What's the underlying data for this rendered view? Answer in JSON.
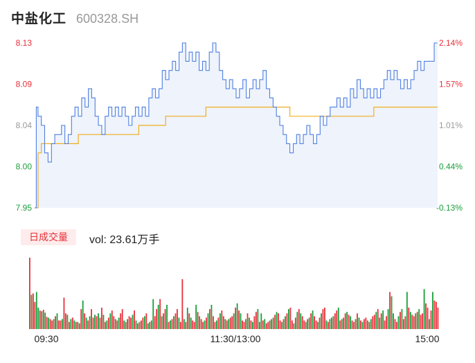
{
  "header": {
    "name": "中盐化工",
    "code": "600328.SH"
  },
  "colors": {
    "up": "#e8303a",
    "down": "#1a9e3a",
    "neutral": "#999999",
    "price_line": "#4d7fe0",
    "avg_line": "#f0ad1c",
    "area_fill": "#eef3fc"
  },
  "volume": {
    "tag": "日成交量",
    "label": "vol: 23.61万手"
  },
  "chart_data": {
    "type": "line",
    "y_left_ticks": [
      "8.13",
      "8.09",
      "8.04",
      "8.00",
      "7.95"
    ],
    "y_right_ticks": [
      "2.14%",
      "1.57%",
      "1.01%",
      "0.44%",
      "-0.13%"
    ],
    "x_ticks": [
      "09:30",
      "11:30/13:00",
      "15:00"
    ],
    "ylim": [
      7.95,
      8.13
    ],
    "minutes": 240,
    "price": [
      [
        0,
        7.95
      ],
      [
        1,
        8.06
      ],
      [
        2,
        8.05
      ],
      [
        4,
        8.04
      ],
      [
        6,
        8.01
      ],
      [
        8,
        8.0
      ],
      [
        10,
        8.02
      ],
      [
        12,
        8.03
      ],
      [
        14,
        8.03
      ],
      [
        16,
        8.04
      ],
      [
        18,
        8.02
      ],
      [
        20,
        8.03
      ],
      [
        22,
        8.05
      ],
      [
        24,
        8.06
      ],
      [
        26,
        8.05
      ],
      [
        28,
        8.07
      ],
      [
        30,
        8.06
      ],
      [
        32,
        8.08
      ],
      [
        34,
        8.07
      ],
      [
        36,
        8.05
      ],
      [
        38,
        8.04
      ],
      [
        40,
        8.03
      ],
      [
        42,
        8.05
      ],
      [
        44,
        8.06
      ],
      [
        46,
        8.05
      ],
      [
        48,
        8.06
      ],
      [
        50,
        8.05
      ],
      [
        52,
        8.06
      ],
      [
        54,
        8.05
      ],
      [
        56,
        8.04
      ],
      [
        58,
        8.05
      ],
      [
        60,
        8.06
      ],
      [
        62,
        8.05
      ],
      [
        64,
        8.06
      ],
      [
        66,
        8.05
      ],
      [
        68,
        8.07
      ],
      [
        70,
        8.08
      ],
      [
        72,
        8.07
      ],
      [
        74,
        8.08
      ],
      [
        76,
        8.1
      ],
      [
        78,
        8.09
      ],
      [
        80,
        8.1
      ],
      [
        82,
        8.11
      ],
      [
        84,
        8.1
      ],
      [
        86,
        8.12
      ],
      [
        88,
        8.13
      ],
      [
        90,
        8.11
      ],
      [
        92,
        8.12
      ],
      [
        94,
        8.11
      ],
      [
        96,
        8.12
      ],
      [
        98,
        8.1
      ],
      [
        100,
        8.11
      ],
      [
        102,
        8.1
      ],
      [
        104,
        8.12
      ],
      [
        106,
        8.13
      ],
      [
        108,
        8.12
      ],
      [
        110,
        8.1
      ],
      [
        112,
        8.09
      ],
      [
        114,
        8.08
      ],
      [
        116,
        8.09
      ],
      [
        118,
        8.08
      ],
      [
        120,
        8.07
      ],
      [
        122,
        8.08
      ],
      [
        124,
        8.09
      ],
      [
        126,
        8.07
      ],
      [
        128,
        8.08
      ],
      [
        130,
        8.09
      ],
      [
        132,
        8.08
      ],
      [
        134,
        8.09
      ],
      [
        136,
        8.1
      ],
      [
        138,
        8.08
      ],
      [
        140,
        8.07
      ],
      [
        142,
        8.06
      ],
      [
        144,
        8.05
      ],
      [
        146,
        8.04
      ],
      [
        148,
        8.03
      ],
      [
        150,
        8.02
      ],
      [
        152,
        8.01
      ],
      [
        154,
        8.02
      ],
      [
        156,
        8.03
      ],
      [
        158,
        8.02
      ],
      [
        160,
        8.03
      ],
      [
        162,
        8.04
      ],
      [
        164,
        8.03
      ],
      [
        166,
        8.02
      ],
      [
        168,
        8.03
      ],
      [
        170,
        8.05
      ],
      [
        172,
        8.04
      ],
      [
        174,
        8.05
      ],
      [
        176,
        8.06
      ],
      [
        178,
        8.06
      ],
      [
        180,
        8.07
      ],
      [
        182,
        8.06
      ],
      [
        184,
        8.07
      ],
      [
        186,
        8.06
      ],
      [
        188,
        8.08
      ],
      [
        190,
        8.07
      ],
      [
        192,
        8.09
      ],
      [
        194,
        8.08
      ],
      [
        196,
        8.07
      ],
      [
        198,
        8.08
      ],
      [
        200,
        8.07
      ],
      [
        202,
        8.08
      ],
      [
        204,
        8.07
      ],
      [
        206,
        8.08
      ],
      [
        208,
        8.09
      ],
      [
        210,
        8.1
      ],
      [
        212,
        8.09
      ],
      [
        214,
        8.1
      ],
      [
        216,
        8.09
      ],
      [
        218,
        8.08
      ],
      [
        220,
        8.09
      ],
      [
        222,
        8.08
      ],
      [
        224,
        8.09
      ],
      [
        226,
        8.1
      ],
      [
        228,
        8.11
      ],
      [
        230,
        8.1
      ],
      [
        232,
        8.11
      ],
      [
        234,
        8.11
      ],
      [
        236,
        8.11
      ],
      [
        238,
        8.13
      ],
      [
        240,
        8.13
      ]
    ],
    "avg": [
      [
        0,
        7.95
      ],
      [
        2,
        8.01
      ],
      [
        4,
        8.02
      ],
      [
        10,
        8.02
      ],
      [
        20,
        8.02
      ],
      [
        26,
        8.03
      ],
      [
        60,
        8.03
      ],
      [
        62,
        8.04
      ],
      [
        76,
        8.04
      ],
      [
        78,
        8.05
      ],
      [
        100,
        8.05
      ],
      [
        102,
        8.06
      ],
      [
        150,
        8.06
      ],
      [
        152,
        8.05
      ],
      [
        200,
        8.05
      ],
      [
        202,
        8.06
      ],
      [
        240,
        8.06
      ]
    ],
    "volumes": [
      100,
      48,
      50,
      38,
      52,
      30,
      26,
      25,
      27,
      23,
      17,
      16,
      14,
      12,
      14,
      18,
      22,
      12,
      12,
      14,
      44,
      22,
      20,
      10,
      14,
      16,
      12,
      10,
      10,
      8,
      28,
      40,
      22,
      16,
      12,
      18,
      28,
      16,
      20,
      18,
      22,
      16,
      30,
      20,
      10,
      12,
      16,
      22,
      26,
      18,
      14,
      12,
      16,
      22,
      28,
      12,
      10,
      14,
      18,
      16,
      20,
      26,
      12,
      8,
      10,
      12,
      16,
      18,
      22,
      8,
      10,
      12,
      42,
      18,
      28,
      34,
      42,
      18,
      22,
      28,
      34,
      10,
      12,
      14,
      18,
      22,
      28,
      16,
      10,
      70,
      14,
      10,
      30,
      22,
      16,
      12,
      10,
      34,
      24,
      18,
      14,
      10,
      12,
      16,
      22,
      28,
      34,
      18,
      10,
      12,
      16,
      22,
      26,
      18,
      14,
      12,
      14,
      16,
      18,
      22,
      30,
      36,
      26,
      22,
      12,
      10,
      14,
      22,
      16,
      12,
      10,
      18,
      24,
      28,
      10,
      22,
      12,
      14,
      8,
      10,
      12,
      14,
      16,
      20,
      24,
      22,
      12,
      10,
      14,
      18,
      22,
      28,
      30,
      12,
      8,
      16,
      24,
      28,
      22,
      18,
      12,
      10,
      14,
      16,
      22,
      26,
      18,
      12,
      10,
      16,
      22,
      28,
      30,
      12,
      10,
      14,
      16,
      18,
      22,
      26,
      30,
      12,
      14,
      16,
      22,
      24,
      20,
      18,
      12,
      10,
      14,
      22,
      16,
      12,
      10,
      14,
      16,
      12,
      10,
      14,
      18,
      20,
      24,
      28,
      16,
      22,
      26,
      12,
      18,
      28,
      52,
      46,
      22,
      14,
      10,
      18,
      24,
      28,
      14,
      18,
      52,
      30,
      24,
      20,
      18,
      22,
      24,
      28,
      20,
      22,
      56,
      36,
      30,
      14,
      26,
      52,
      40,
      38,
      30
    ],
    "vol_up": [
      1,
      0,
      1,
      1,
      0,
      0,
      1,
      0,
      1,
      0,
      1,
      0,
      1,
      1,
      0,
      1,
      0,
      1,
      1,
      0,
      1,
      1,
      0,
      1,
      0,
      1,
      0,
      1,
      0,
      1,
      1,
      0,
      1,
      0,
      1,
      0,
      1,
      1,
      0,
      1,
      0,
      1,
      1,
      0,
      1,
      0,
      1,
      0,
      1,
      1,
      0,
      1,
      0,
      1,
      1,
      0,
      1,
      0,
      1,
      1,
      0,
      1,
      0,
      1,
      0,
      1,
      1,
      0,
      1,
      0,
      1,
      0,
      0,
      1,
      1,
      0,
      1,
      0,
      1,
      1,
      0,
      1,
      0,
      1,
      0,
      1,
      1,
      0,
      1,
      1,
      0,
      1,
      0,
      1,
      0,
      1,
      1,
      0,
      1,
      0,
      1,
      1,
      0,
      1,
      0,
      1,
      0,
      1,
      1,
      0,
      1,
      0,
      1,
      1,
      0,
      1,
      0,
      1,
      1,
      0,
      1,
      0,
      1,
      0,
      1,
      1,
      0,
      1,
      0,
      1,
      0,
      1,
      1,
      0,
      1,
      0,
      1,
      0,
      1,
      1,
      0,
      1,
      0,
      1,
      0,
      1,
      1,
      0,
      1,
      0,
      1,
      0,
      1,
      1,
      0,
      1,
      0,
      1,
      0,
      1,
      1,
      0,
      1,
      0,
      1,
      0,
      1,
      1,
      0,
      1,
      0,
      1,
      1,
      0,
      1,
      0,
      1,
      0,
      1,
      1,
      0,
      1,
      0,
      1,
      1,
      0,
      1,
      0,
      1,
      1,
      0,
      1,
      0,
      1,
      0,
      1,
      1,
      0,
      1,
      0,
      1,
      1,
      0,
      1,
      0,
      1,
      0,
      1,
      1,
      0,
      1,
      0,
      0,
      1,
      1,
      0,
      1,
      0,
      1,
      1,
      0,
      1,
      0,
      1,
      1,
      0,
      1,
      0,
      1,
      1,
      0,
      1,
      1,
      0,
      1,
      0,
      1,
      1,
      1,
      1,
      1
    ]
  }
}
